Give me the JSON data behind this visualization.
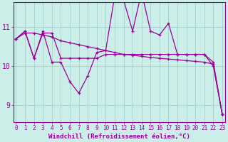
{
  "xlabel": "Windchill (Refroidissement éolien,°C)",
  "background_color": "#cceee8",
  "line_color": "#990099",
  "x_ticks": [
    0,
    1,
    2,
    3,
    4,
    5,
    6,
    7,
    8,
    9,
    10,
    11,
    12,
    13,
    14,
    15,
    16,
    17,
    18,
    19,
    20,
    21,
    22,
    23
  ],
  "y_ticks": [
    9,
    10,
    11
  ],
  "ylim": [
    8.55,
    11.65
  ],
  "xlim": [
    -0.3,
    23.3
  ],
  "series1": [
    10.7,
    10.9,
    10.2,
    10.9,
    10.1,
    10.1,
    9.6,
    9.3,
    9.75,
    10.35,
    10.4,
    11.8,
    11.7,
    10.9,
    11.9,
    10.9,
    10.8,
    11.1,
    10.3,
    10.3,
    10.3,
    10.3,
    10.0,
    8.75
  ],
  "series2": [
    10.7,
    10.9,
    10.2,
    10.85,
    10.85,
    10.2,
    10.2,
    10.2,
    10.2,
    10.2,
    10.3,
    10.3,
    10.3,
    10.3,
    10.3,
    10.3,
    10.3,
    10.3,
    10.3,
    10.3,
    10.3,
    10.3,
    10.1,
    8.75
  ],
  "series3": [
    10.7,
    10.85,
    10.85,
    10.8,
    10.75,
    10.65,
    10.6,
    10.55,
    10.5,
    10.45,
    10.4,
    10.35,
    10.3,
    10.28,
    10.25,
    10.22,
    10.2,
    10.18,
    10.16,
    10.14,
    10.12,
    10.1,
    10.05,
    8.75
  ],
  "grid_color": "#99cccc",
  "tick_color": "#990099",
  "label_color": "#990099",
  "font_family": "monospace",
  "linewidth": 0.9,
  "markersize": 2.5,
  "tick_fontsize": 5.5,
  "label_fontsize": 6.5
}
